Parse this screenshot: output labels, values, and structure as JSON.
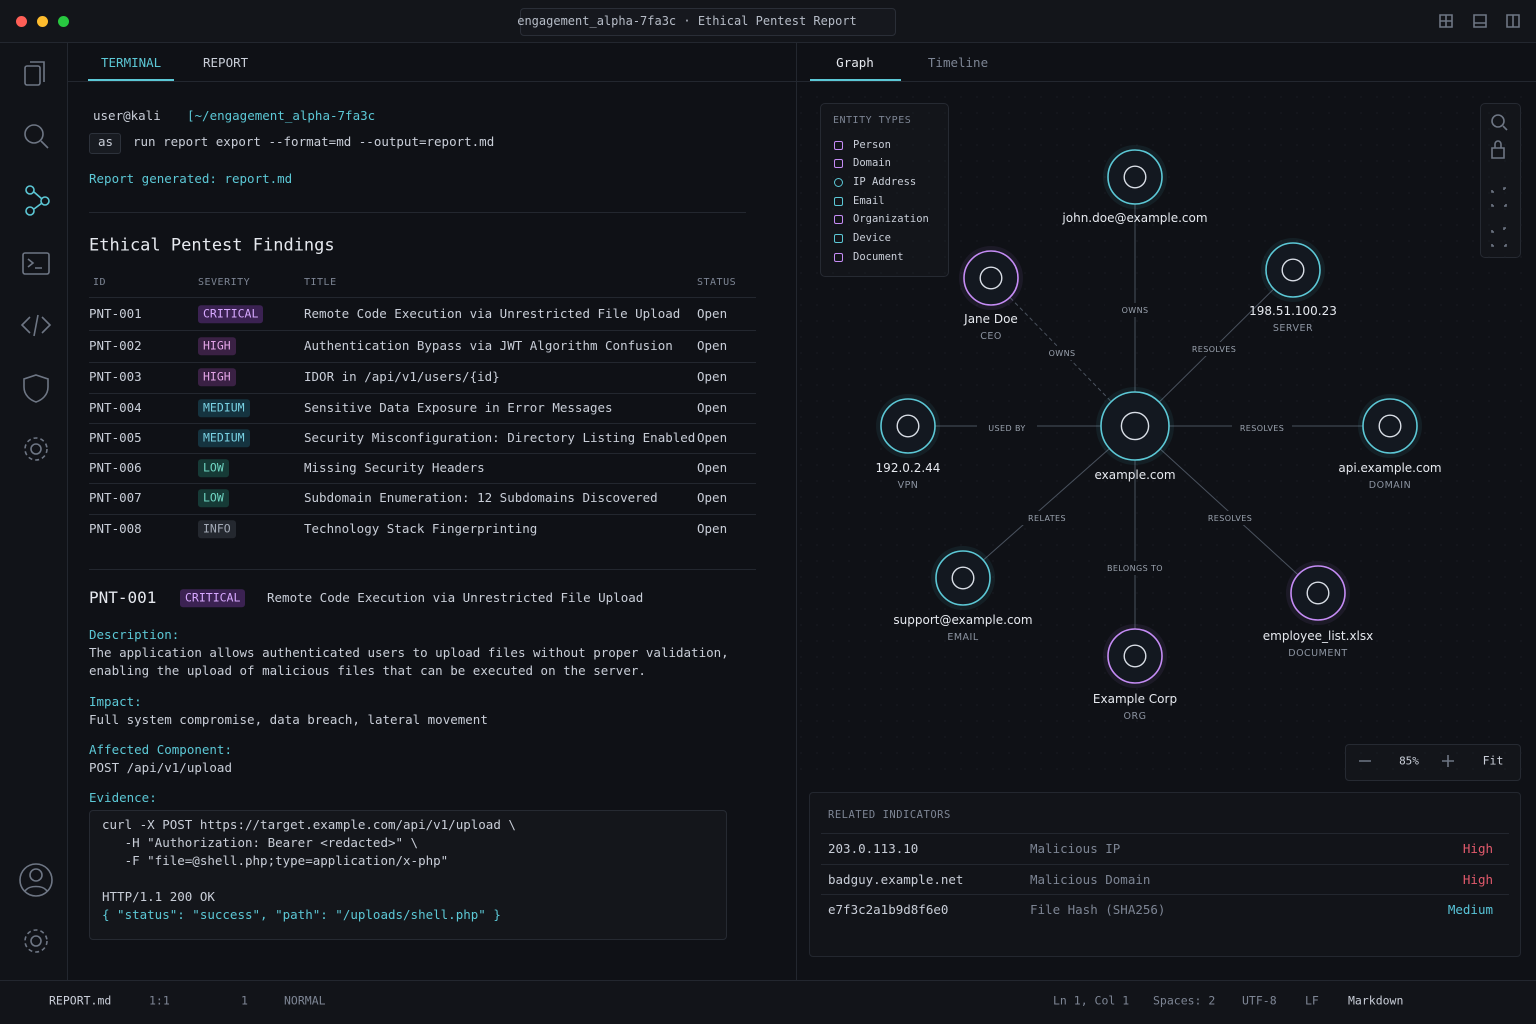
{
  "window": {
    "tab_title": "engagement_alpha-7fa3c · Ethical Pentest Report"
  },
  "left_tabs": [
    "TERMINAL",
    "REPORT"
  ],
  "terminal": {
    "user": "user@kali",
    "path": "[~/engagement_alpha-7fa3c",
    "badge": "as",
    "command": "run report export --format=md --output=report.md",
    "output": "Report generated: report.md"
  },
  "report": {
    "heading": "Ethical Pentest Findings",
    "columns": [
      "ID",
      "SEVERITY",
      "TITLE",
      "STATUS"
    ],
    "rows": [
      [
        "PNT-001",
        "CRITICAL",
        "Remote Code Execution via Unrestricted File Upload",
        "Open"
      ],
      [
        "PNT-002",
        "HIGH",
        "Authentication Bypass via JWT Algorithm Confusion",
        "Open"
      ],
      [
        "PNT-003",
        "HIGH",
        "IDOR in /api/v1/users/{id}",
        "Open"
      ],
      [
        "PNT-004",
        "MEDIUM",
        "Sensitive Data Exposure in Error Messages",
        "Open"
      ],
      [
        "PNT-005",
        "MEDIUM",
        "Security Misconfiguration: Directory Listing Enabled",
        "Open"
      ],
      [
        "PNT-006",
        "LOW",
        "Missing Security Headers",
        "Open"
      ],
      [
        "PNT-007",
        "LOW",
        "Subdomain Enumeration: 12 Subdomains Discovered",
        "Open"
      ],
      [
        "PNT-008",
        "INFO",
        "Technology Stack Fingerprinting",
        "Open"
      ]
    ]
  },
  "detail": {
    "id": "PNT-001",
    "severity": "CRITICAL",
    "title": "Remote Code Execution via Unrestricted File Upload",
    "description_label": "Description:",
    "description": [
      "The application allows authenticated users to upload files without proper validation,",
      "enabling the upload of malicious files that can be executed on the server."
    ],
    "impact_label": "Impact:",
    "impact": "Full system compromise, data breach, lateral movement",
    "component_label": "Affected Component:",
    "component": "POST /api/v1/upload",
    "evidence_label": "Evidence:",
    "evidence": [
      "curl -X POST https://target.example.com/api/v1/upload \\",
      "   -H \"Authorization: Bearer <redacted>\" \\",
      "   -F \"file=@shell.php;type=application/x-php\"",
      "HTTP/1.1 200 OK",
      "{ \"status\": \"success\", \"path\": \"/uploads/shell.php\" }"
    ]
  },
  "graph_tabs": [
    "Graph",
    "Timeline"
  ],
  "entity_types": {
    "title": "ENTITY TYPES",
    "items": [
      "Person",
      "Domain",
      "IP Address",
      "Email",
      "Organization",
      "Device",
      "Document"
    ]
  },
  "nodes": [
    {
      "label": "example.com"
    },
    {
      "label": "john.doe@example.com"
    },
    {
      "label": "Jane Doe",
      "sublabel": "CEO"
    },
    {
      "label": "198.51.100.23",
      "sublabel": "SERVER"
    },
    {
      "label": "192.0.2.44",
      "sublabel": "VPN"
    },
    {
      "label": "api.example.com",
      "sublabel": "DOMAIN"
    },
    {
      "label": "support@example.com",
      "sublabel": "EMAIL"
    },
    {
      "label": "employee_list.xlsx",
      "sublabel": "DOCUMENT"
    },
    {
      "label": "Example Corp",
      "sublabel": "ORG"
    }
  ],
  "edges": [
    "OWNS",
    "OWNS",
    "RESOLVES",
    "USED BY",
    "RESOLVES",
    "RELATES",
    "RESOLVES",
    "BELONGS TO"
  ],
  "zoom": {
    "level": "85%",
    "fit": "Fit"
  },
  "indicators": {
    "title": "RELATED INDICATORS",
    "rows": [
      [
        "203.0.113.10",
        "Malicious IP",
        "High"
      ],
      [
        "badguy.example.net",
        "Malicious Domain",
        "High"
      ],
      [
        "e7f3c2a1b9d8f6e0",
        "File Hash (SHA256)",
        "Medium"
      ]
    ]
  },
  "status_bar": {
    "file": "REPORT.md",
    "position": "1:1",
    "count": "1",
    "mode": "NORMAL",
    "cursor": "Ln 1, Col 1",
    "spaces": "Spaces: 2",
    "encoding": "UTF-8",
    "eol": "LF",
    "language": "Markdown"
  }
}
